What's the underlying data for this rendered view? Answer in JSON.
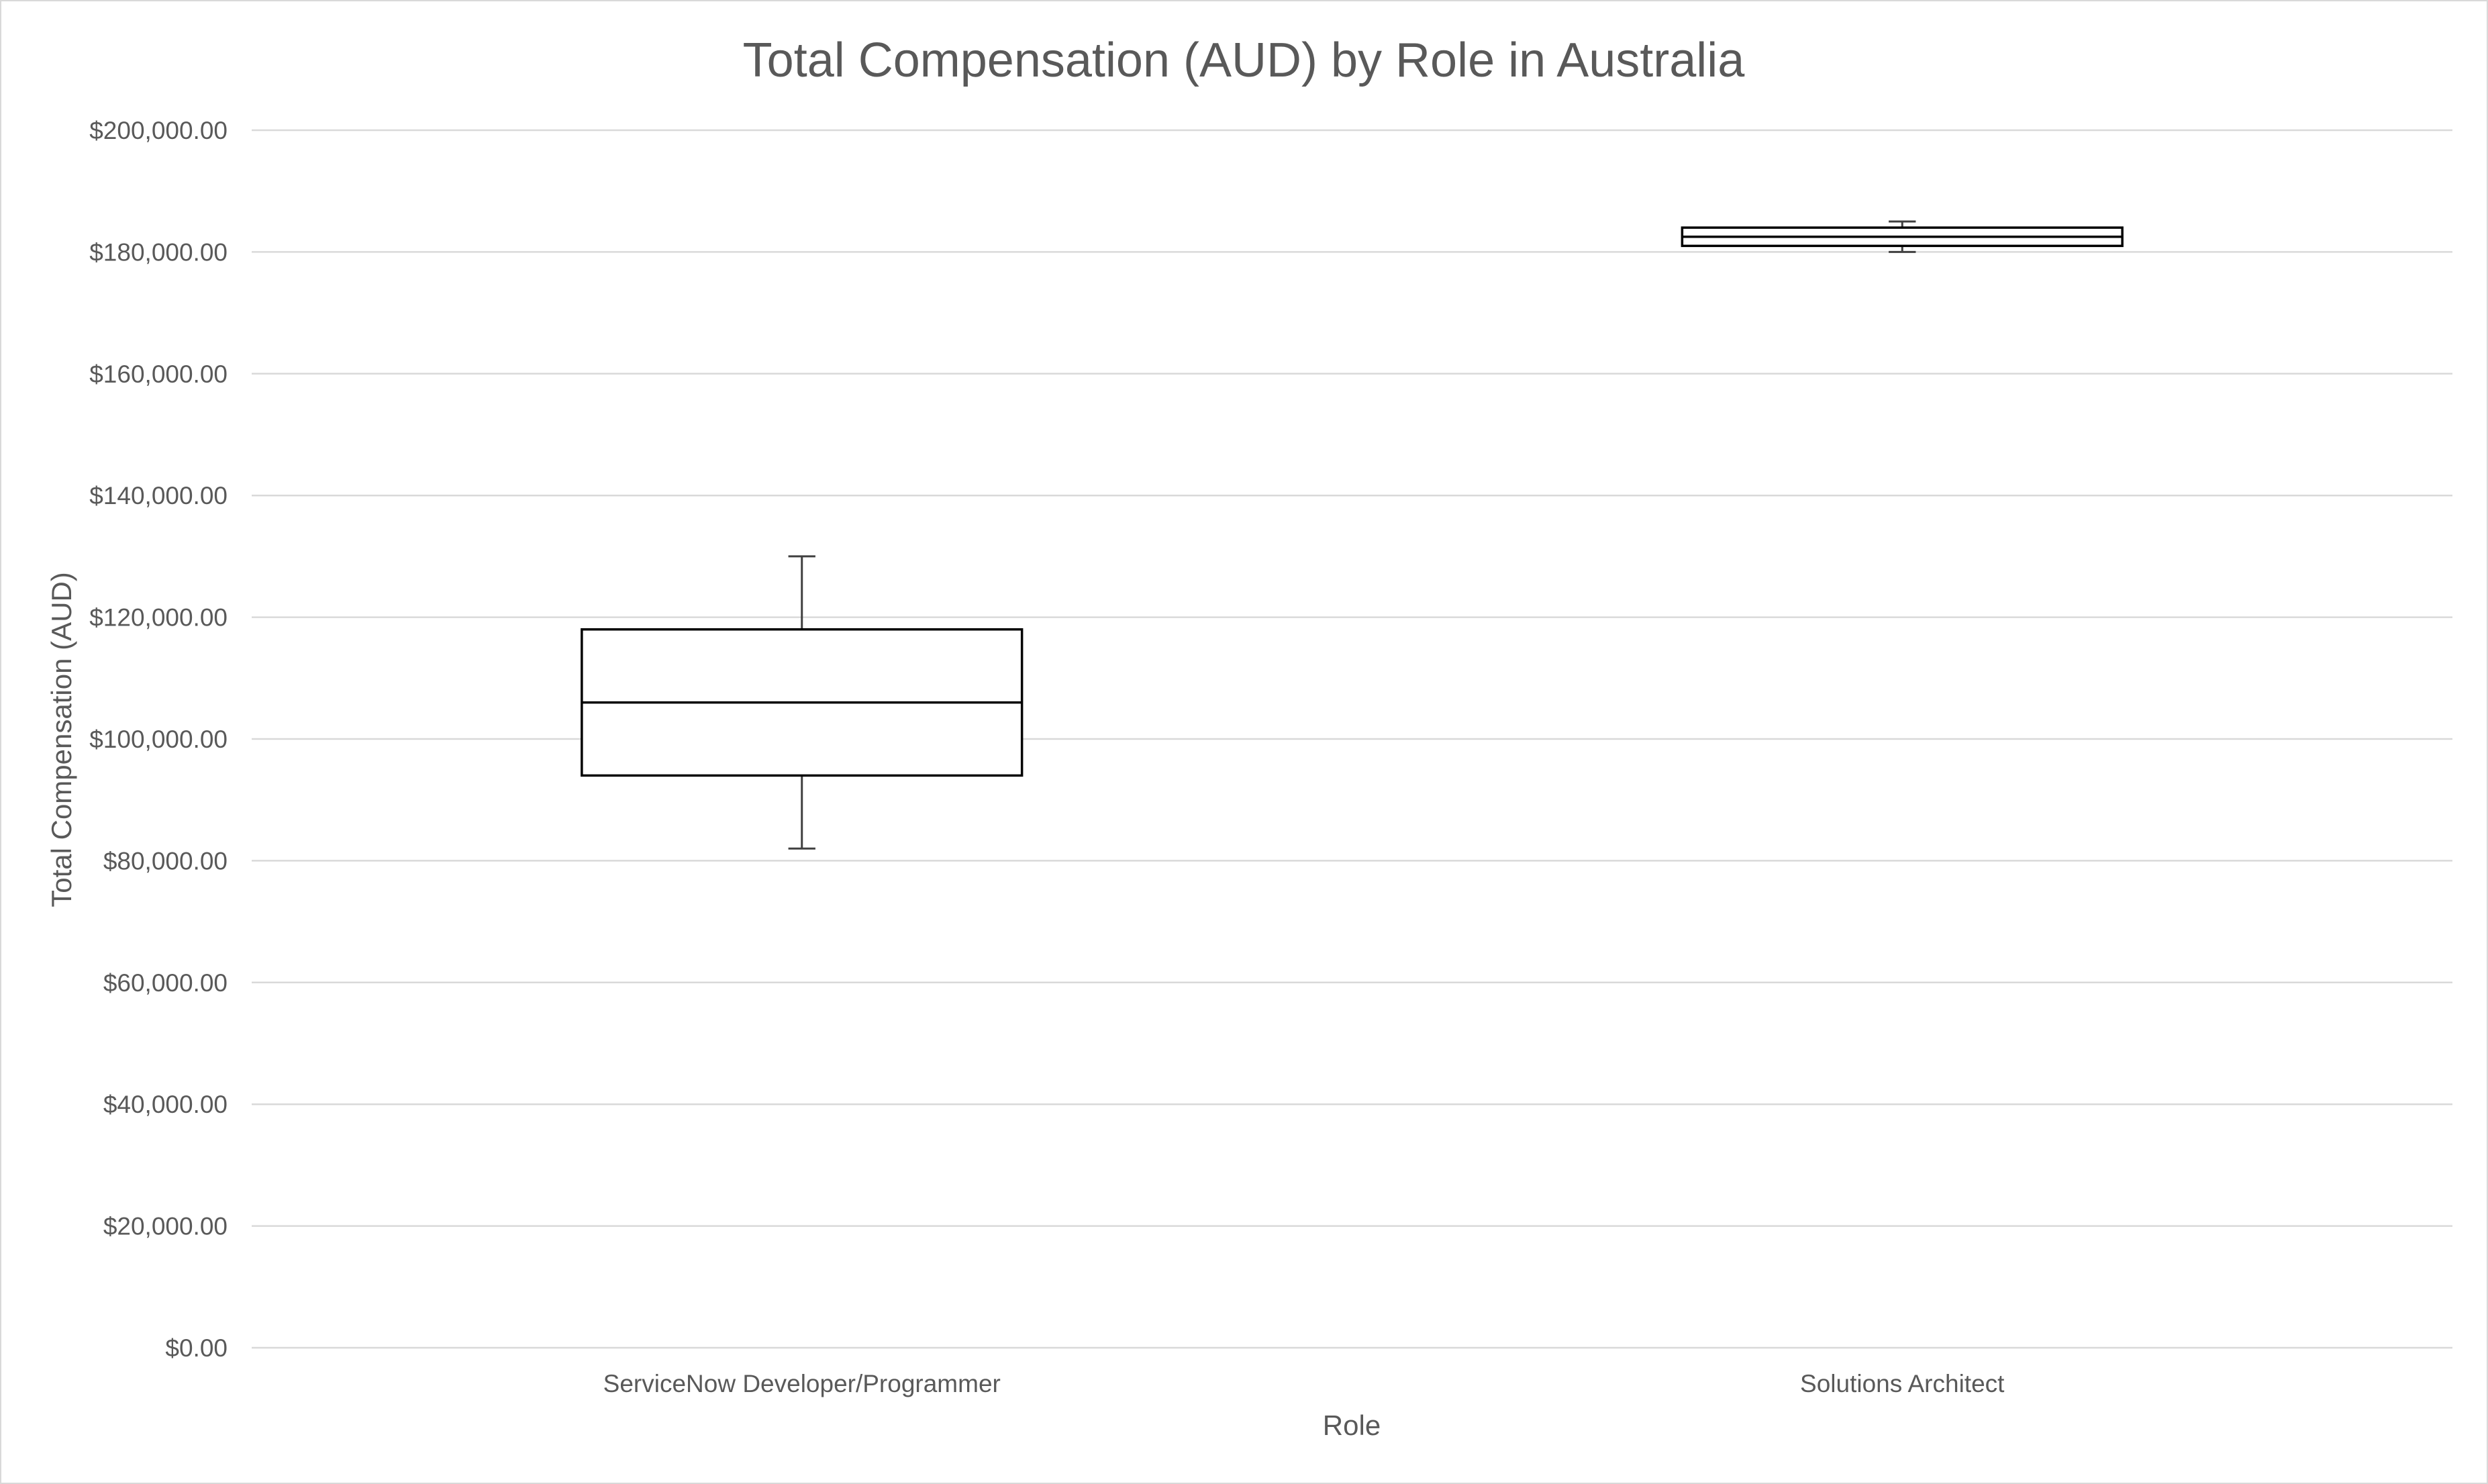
{
  "chart_data": {
    "type": "box",
    "title": "Total Compensation (AUD) by Role in Australia",
    "xlabel": "Role",
    "ylabel": "Total Compensation (AUD)",
    "ylim": [
      0,
      200000
    ],
    "y_ticks": [
      0,
      20000,
      40000,
      60000,
      80000,
      100000,
      120000,
      140000,
      160000,
      180000,
      200000
    ],
    "y_tick_labels": [
      "$0.00",
      "$20,000.00",
      "$40,000.00",
      "$60,000.00",
      "$80,000.00",
      "$100,000.00",
      "$120,000.00",
      "$140,000.00",
      "$160,000.00",
      "$180,000.00",
      "$200,000.00"
    ],
    "grid": true,
    "legend": "none",
    "categories": [
      "ServiceNow Developer/Programmer",
      "Solutions Architect"
    ],
    "boxes": [
      {
        "category": "ServiceNow Developer/Programmer",
        "min": 82000,
        "q1": 94000,
        "median": 106000,
        "q3": 118000,
        "max": 130000
      },
      {
        "category": "Solutions Architect",
        "min": 180000,
        "q1": 181000,
        "median": 182500,
        "q3": 184000,
        "max": 185000
      }
    ],
    "colors": {
      "box_fill": "#ffffff",
      "box_stroke": "#000000",
      "whisker": "#404040",
      "grid": "#d9d9d9",
      "text": "#595959"
    }
  }
}
